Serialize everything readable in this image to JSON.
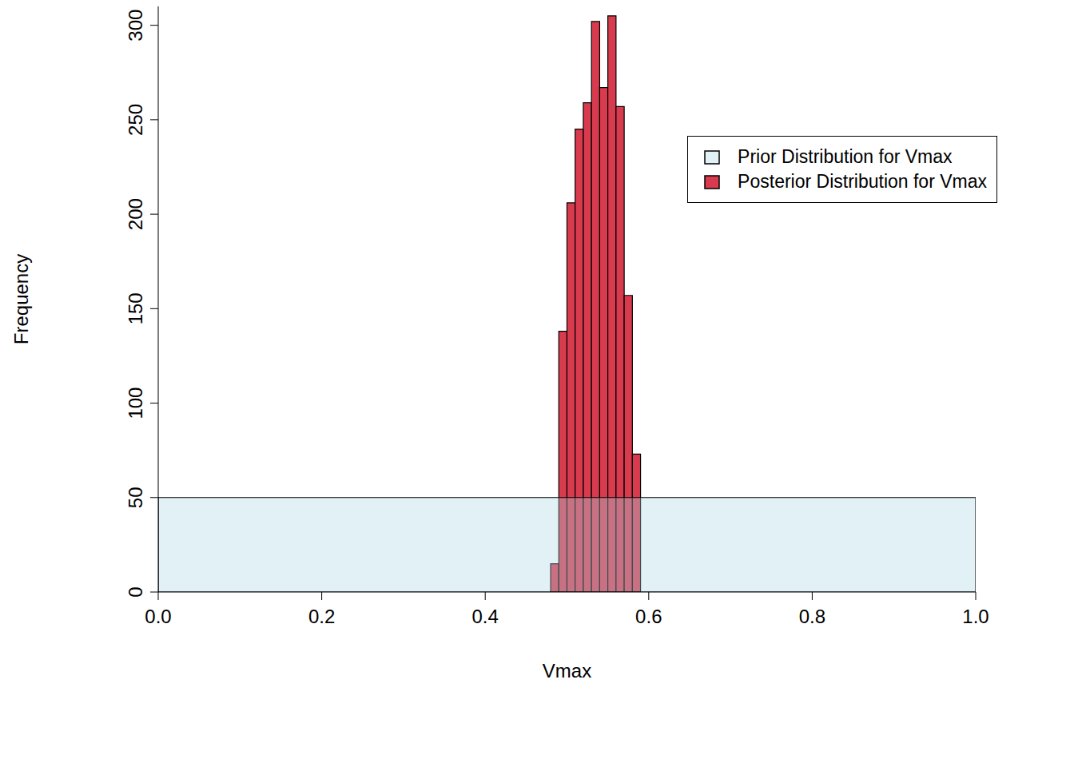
{
  "chart_data": {
    "type": "histogram",
    "x_label": "Vmax",
    "y_label": "Frequency",
    "xlim": [
      0,
      1
    ],
    "xticks": [
      {
        "value": 0,
        "label": "0.0"
      },
      0.2,
      0.4,
      0.6,
      0.8,
      {
        "value": 1,
        "label": "1.0"
      }
    ],
    "ylim": [
      0,
      310
    ],
    "yticks": [
      0,
      50,
      100,
      150,
      200,
      250,
      300
    ],
    "legend": "top-right",
    "series": [
      {
        "name": "Prior Distribution for Vmax",
        "color": "#add8e6",
        "bins": [
          0,
          1
        ],
        "counts": [
          50
        ]
      },
      {
        "name": "Posterior Distribution for Vmax",
        "color": "#d83b4d",
        "bins": [
          0.48,
          0.49,
          0.5,
          0.51,
          0.52,
          0.53,
          0.54,
          0.55,
          0.56,
          0.57,
          0.58,
          0.59
        ],
        "counts": [
          15,
          138,
          206,
          245,
          259,
          302,
          267,
          305,
          257,
          157,
          73
        ]
      }
    ]
  }
}
